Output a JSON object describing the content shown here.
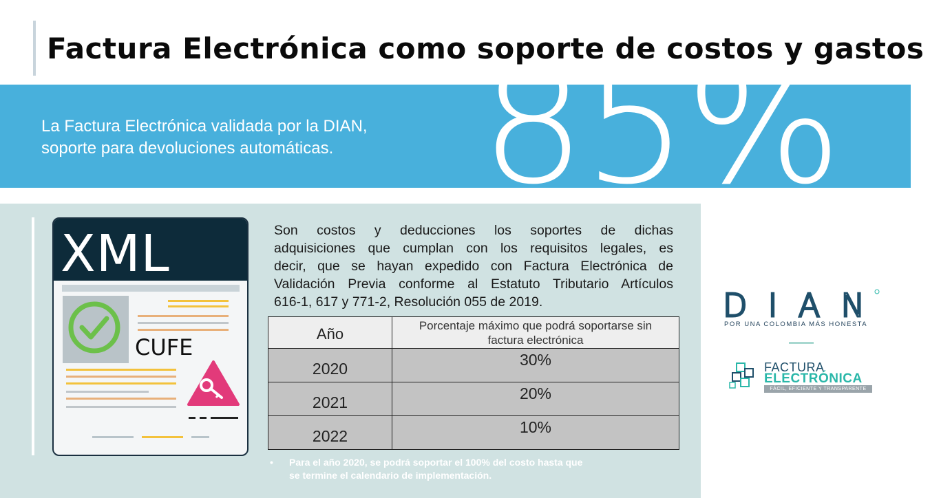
{
  "slide": {
    "title": "Factura Electrónica como soporte de costos y gastos"
  },
  "banner": {
    "line1": "La Factura Electrónica validada por la DIAN,",
    "line2": "soporte para devoluciones automáticas.",
    "big_number": "85%",
    "background_color": "#48b0dc"
  },
  "document_icon": {
    "header": "XML",
    "label": "CUFE"
  },
  "body": {
    "lines": [
      "Son costos y deducciones los soportes de dichas",
      "adquisiciones que cumplan con los requisitos legales, es",
      "decir, que se hayan expedido con Factura Electrónica de",
      "Validación Previa conforme al Estatuto Tributario Artículos",
      "616-1, 617 y 771-2, Resolución 055 de 2019."
    ]
  },
  "table": {
    "headers": [
      "Año",
      "Porcentaje máximo que podrá soportarse sin factura electrónica"
    ],
    "header_pct_line1": "Porcentaje máximo que podrá soportarse sin",
    "header_pct_line2": "factura electrónica",
    "rows": [
      {
        "year": "2020",
        "pct": "30%"
      },
      {
        "year": "2021",
        "pct": "20%"
      },
      {
        "year": "2022",
        "pct": "10%"
      }
    ]
  },
  "note": {
    "bullet": "•",
    "line1": "Para el año 2020, se podrá soportar el 100% del costo hasta que",
    "line2": "se termine el calendario de implementación."
  },
  "logos": {
    "dian": {
      "wordmark": "DIAN",
      "tagline": "POR UNA COLOMBIA MÁS HONESTA",
      "color": "#1f4f6a",
      "accent": "#2ab7a9"
    },
    "factura": {
      "word1": "FACTURA",
      "word2": "ELECTRÓNICA",
      "tagline": "FÁCIL, EFICIENTE Y TRANSPARENTE"
    }
  }
}
